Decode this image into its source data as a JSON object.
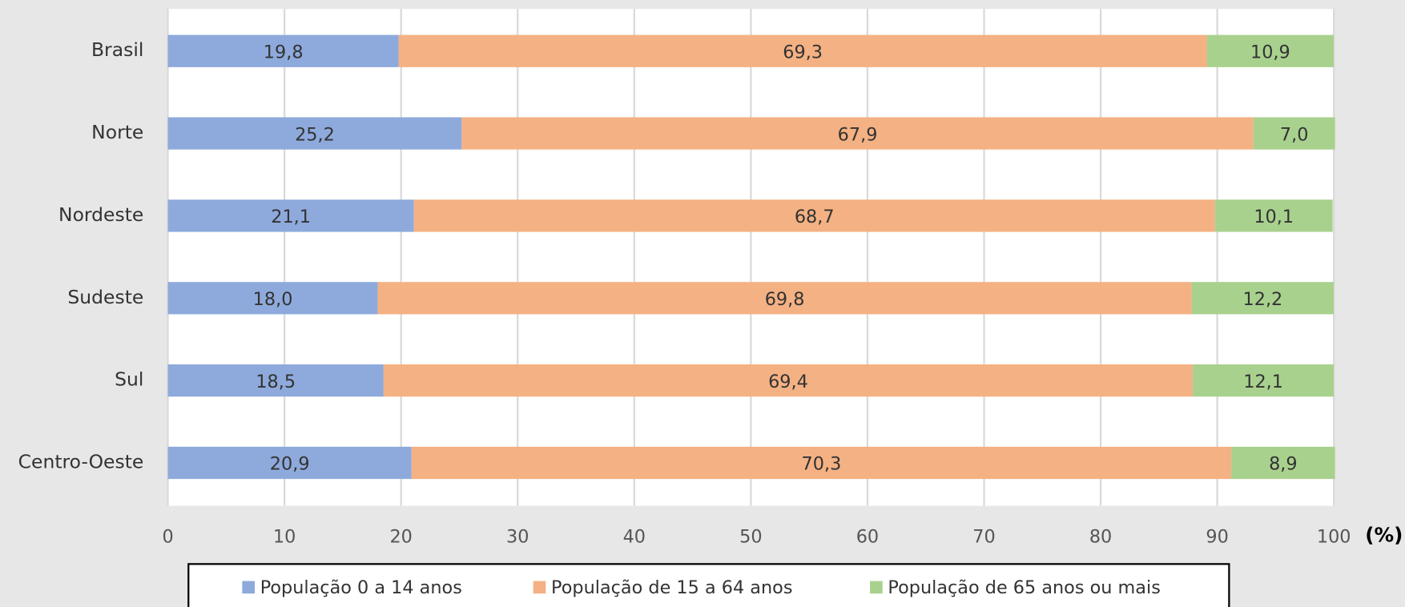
{
  "chart_data": {
    "type": "stacked_barh",
    "categories": [
      "Brasil",
      "Norte",
      "Nordeste",
      "Sudeste",
      "Sul",
      "Centro-Oeste"
    ],
    "series": [
      {
        "name": "População 0 a 14 anos",
        "color": "#8eaadc",
        "values": [
          19.8,
          25.2,
          21.1,
          18.0,
          18.5,
          20.9
        ],
        "value_labels": [
          "19,8",
          "25,2",
          "21,1",
          "18,0",
          "18,5",
          "20,9"
        ]
      },
      {
        "name": "População de 15 a 64 anos",
        "color": "#f4b183",
        "values": [
          69.3,
          67.9,
          68.7,
          69.8,
          69.4,
          70.3
        ],
        "value_labels": [
          "69,3",
          "67,9",
          "68,7",
          "69,8",
          "69,4",
          "70,3"
        ]
      },
      {
        "name": "População de 65 anos ou mais",
        "color": "#a9d18e",
        "values": [
          10.9,
          7.0,
          10.1,
          12.2,
          12.1,
          8.9
        ],
        "value_labels": [
          "10,9",
          "7,0",
          "10,1",
          "12,2",
          "12,1",
          "8,9"
        ]
      }
    ],
    "x_label": "(%)",
    "xlim": [
      0,
      100
    ],
    "xticks": [
      0,
      10,
      20,
      30,
      40,
      50,
      60,
      70,
      80,
      90,
      100
    ],
    "grid": true
  }
}
